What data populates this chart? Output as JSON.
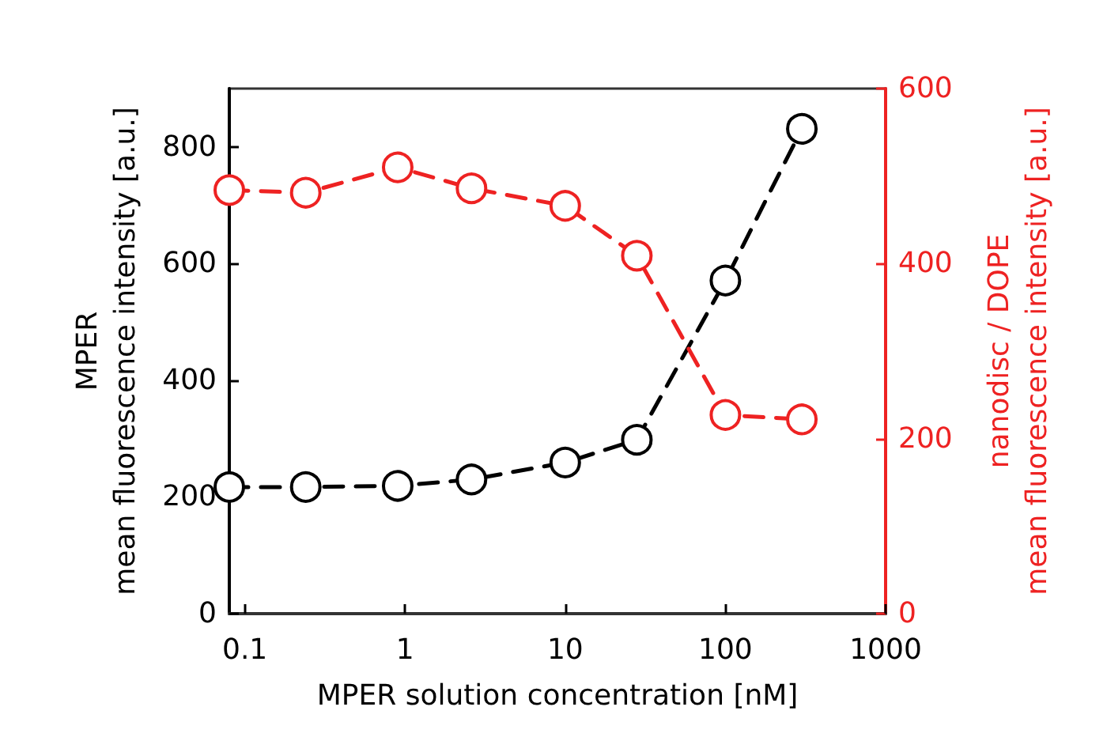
{
  "chart_data": {
    "type": "line",
    "xlabel": "MPER solution concentration [nM]",
    "ylabel": "MPER\nmean fluorescence intensity [a.u.]",
    "y2label": "nanodisc / DOPE\nmean fluorescence intensity [a.u.]",
    "x": [
      0.08,
      0.24,
      0.9,
      2.6,
      10,
      28,
      100,
      300
    ],
    "series": [
      {
        "color": "#000000",
        "values": [
          217,
          217,
          219,
          230,
          259,
          298,
          571,
          831
        ]
      },
      {
        "color": "#ee2222",
        "axis": "y2",
        "values": [
          484,
          481,
          510,
          486,
          466,
          409,
          227,
          222
        ]
      }
    ],
    "log": "x",
    "xlim": [
      0.08,
      1000
    ],
    "xticks": [
      0.1,
      1,
      10,
      100,
      1000
    ],
    "ylim": [
      0,
      900
    ],
    "yticks": [
      0,
      200,
      400,
      600,
      800
    ],
    "y2lim": [
      0,
      600
    ],
    "y2ticks": [
      0,
      200,
      400,
      600
    ],
    "marker": "circle",
    "line_style": "dashed"
  }
}
